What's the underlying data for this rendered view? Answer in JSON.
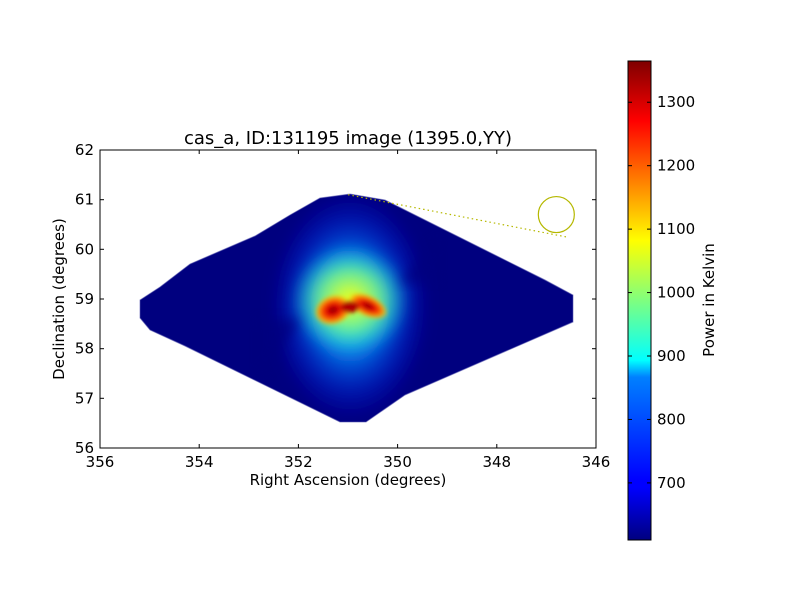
{
  "chart_data": {
    "type": "heatmap",
    "title": "cas_a, ID:131195 image (1395.0,YY)",
    "xlabel": "Right Ascension (degrees)",
    "ylabel": "Declination (degrees)",
    "xlim": [
      356,
      346
    ],
    "ylim": [
      56,
      62
    ],
    "xticks": [
      "356",
      "354",
      "352",
      "350",
      "348",
      "346"
    ],
    "yticks": [
      "56",
      "57",
      "58",
      "59",
      "60",
      "61",
      "62"
    ],
    "x_inverted": true,
    "grid": false,
    "colormap": "jet",
    "colorbar": {
      "label": "Power in Kelvin",
      "range": [
        610,
        1365
      ],
      "ticks": [
        "700",
        "800",
        "900",
        "1000",
        "1100",
        "1200",
        "1300"
      ]
    },
    "source_peak": {
      "ra": 350.8,
      "dec": 58.8,
      "value_approx": 1360
    },
    "background_level": 615,
    "marker_circle": {
      "ra": 346.8,
      "dec": 60.7,
      "color": "#b5b800"
    },
    "dotted_line": {
      "from": [
        351.0,
        61.1
      ],
      "to": [
        346.6,
        60.25
      ],
      "color": "#b5b800"
    }
  }
}
